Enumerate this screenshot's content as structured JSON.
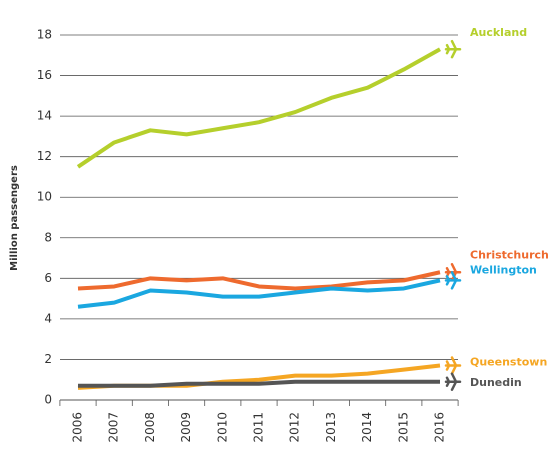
{
  "chart_data": {
    "type": "line",
    "y_label": "Million passengers",
    "categories": [
      "2006",
      "2007",
      "2008",
      "2009",
      "2010",
      "2011",
      "2012",
      "2013",
      "2014",
      "2015",
      "2016"
    ],
    "series": [
      {
        "name": "Auckland",
        "color": "#b5cf2c",
        "values": [
          11.5,
          12.7,
          13.3,
          13.1,
          13.4,
          13.7,
          14.2,
          14.9,
          15.4,
          16.3,
          17.3
        ]
      },
      {
        "name": "Christchurch",
        "color": "#ee6a2e",
        "values": [
          5.5,
          5.6,
          6.0,
          5.9,
          6.0,
          5.6,
          5.5,
          5.6,
          5.8,
          5.9,
          6.3
        ]
      },
      {
        "name": "Wellington",
        "color": "#1aa7e0",
        "values": [
          4.6,
          4.8,
          5.4,
          5.3,
          5.1,
          5.1,
          5.3,
          5.5,
          5.4,
          5.5,
          5.9
        ]
      },
      {
        "name": "Queenstown",
        "color": "#f5a623",
        "values": [
          0.6,
          0.7,
          0.7,
          0.7,
          0.9,
          1.0,
          1.2,
          1.2,
          1.3,
          1.5,
          1.7
        ]
      },
      {
        "name": "Dunedin",
        "color": "#555555",
        "values": [
          0.7,
          0.7,
          0.7,
          0.8,
          0.8,
          0.8,
          0.9,
          0.9,
          0.9,
          0.9,
          0.9
        ]
      }
    ],
    "ylim": [
      0,
      18
    ],
    "yticks": [
      0,
      2,
      4,
      6,
      8,
      10,
      12,
      14,
      16,
      18
    ],
    "grid": true
  }
}
